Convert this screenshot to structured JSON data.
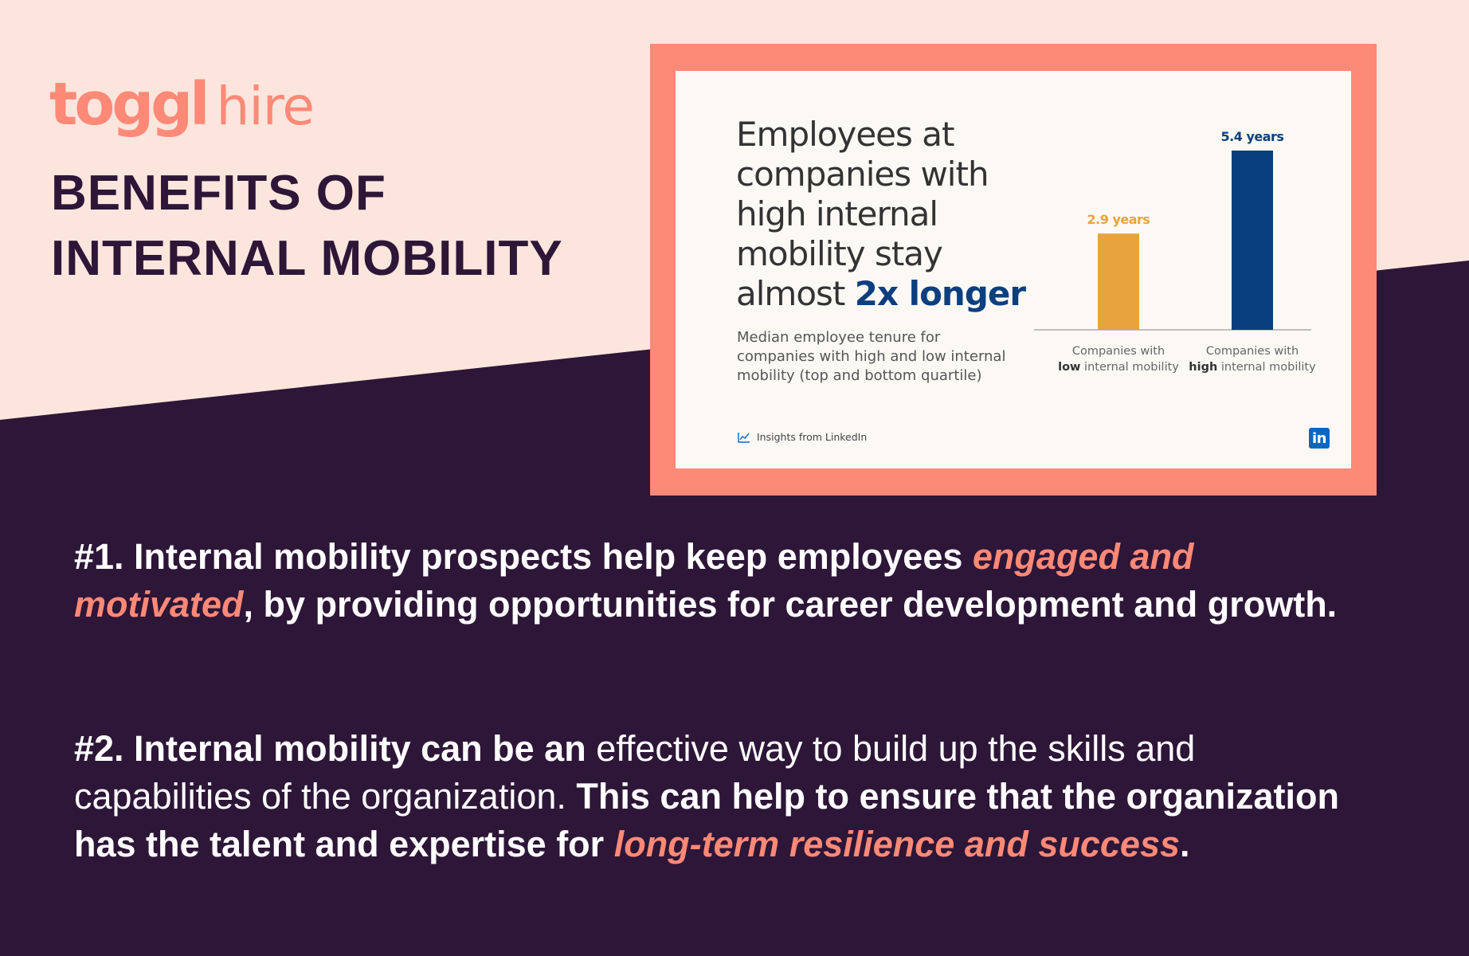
{
  "brand": {
    "logo_main": "toggl",
    "logo_sub": "hire",
    "color": "#ff8977"
  },
  "headline": {
    "line1": "BENEFITS OF",
    "line2": "INTERNAL MOBILITY"
  },
  "colors": {
    "background_top": "#fce5dc",
    "background_bottom": "#2d1637",
    "card_frame": "#fd8977",
    "accent_text": "#ff8977"
  },
  "card": {
    "title_lead": "Employees at companies with high internal mobility stay almost",
    "title_highlight": "2x longer",
    "subtitle": "Median employee tenure for companies with high and low internal mobility (top and bottom quartile)",
    "source": "Insights from LinkedIn",
    "source_icon": "chart-line-icon",
    "badge": "in",
    "badge_icon": "linkedin-icon"
  },
  "chart_data": {
    "type": "bar",
    "categories": [
      {
        "line1": "Companies with",
        "bold": "low",
        "rest": " internal mobility"
      },
      {
        "line1": "Companies with",
        "bold": "high",
        "rest": " internal mobility"
      }
    ],
    "values": [
      2.9,
      5.4
    ],
    "value_labels": [
      "2.9 years",
      "5.4 years"
    ],
    "colors": [
      "#e8a33d",
      "#0a3f7f"
    ],
    "unit": "years",
    "ylim": [
      0,
      6
    ],
    "grid": false,
    "legend": "none"
  },
  "points": [
    {
      "prefix": "#1. Internal mobility prospects help keep employees",
      "accent": "engaged and motivated",
      "suffix": ", by providing opportunities for career development and growth."
    },
    {
      "prefix_bold": "#2. Internal mobility can be an",
      "middle": " effective way to build up the skills and capabilities of the organization.",
      "bold2": " This can help to ensure that the organization has the talent and expertise for",
      "accent": "long-term resilience and success",
      "end": "."
    }
  ]
}
